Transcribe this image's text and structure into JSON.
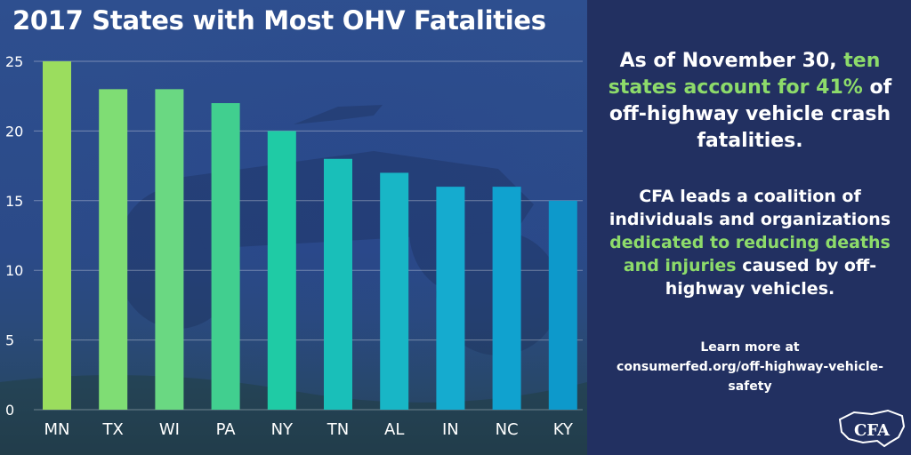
{
  "chart_data": {
    "type": "bar",
    "title": "2017 States with Most OHV Fatalities",
    "categories": [
      "MN",
      "TX",
      "WI",
      "PA",
      "NY",
      "TN",
      "AL",
      "IN",
      "NC",
      "KY"
    ],
    "values": [
      25,
      23,
      23,
      22,
      20,
      18,
      17,
      16,
      16,
      15
    ],
    "xlabel": "",
    "ylabel": "",
    "ylim": [
      0,
      25
    ],
    "yticks": [
      "0",
      "5",
      "10",
      "15",
      "20",
      "25"
    ],
    "grid": true,
    "bar_colors": [
      "#9bdd5e",
      "#7fdd74",
      "#6ad882",
      "#41cf8f",
      "#1fcba5",
      "#19bfb9",
      "#18b6c6",
      "#15abcf",
      "#10a2cf",
      "#0d99cb"
    ]
  },
  "sidebar": {
    "p1_a": "As of November 30,",
    "p1_b": "ten states account for 41%",
    "p1_c": "of off-highway vehicle crash fatalities.",
    "p2_a": "CFA leads a coalition of individuals and organizations",
    "p2_b": "dedicated to reducing deaths and injuries",
    "p2_c": "caused by off-highway vehicles.",
    "p3_a": "Learn more at",
    "p3_b": "consumerfed.org/off-highway-vehicle-safety",
    "logo_text": "CFA"
  },
  "colors": {
    "left_bg": "#2b4a88",
    "right_bg": "#223061",
    "highlight": "#8ddb6a",
    "text": "#ffffff"
  }
}
